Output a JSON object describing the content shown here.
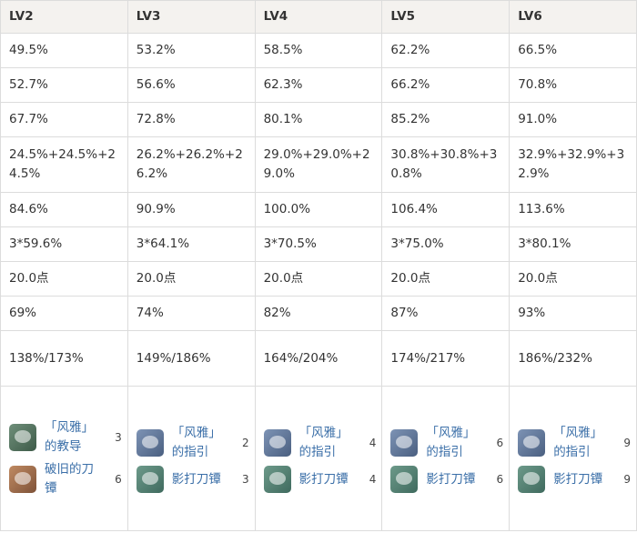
{
  "header": [
    "LV2",
    "LV3",
    "LV4",
    "LV5",
    "LV6"
  ],
  "rows": [
    [
      "49.5%",
      "53.2%",
      "58.5%",
      "62.2%",
      "66.5%"
    ],
    [
      "52.7%",
      "56.6%",
      "62.3%",
      "66.2%",
      "70.8%"
    ],
    [
      "67.7%",
      "72.8%",
      "80.1%",
      "85.2%",
      "91.0%"
    ],
    [
      "24.5%+24.5%+24.5%",
      "26.2%+26.2%+26.2%",
      "29.0%+29.0%+29.0%",
      "30.8%+30.8%+30.8%",
      "32.9%+32.9%+32.9%"
    ],
    [
      "84.6%",
      "90.9%",
      "100.0%",
      "106.4%",
      "113.6%"
    ],
    [
      "3*59.6%",
      "3*64.1%",
      "3*70.5%",
      "3*75.0%",
      "3*80.1%"
    ],
    [
      "20.0点",
      "20.0点",
      "20.0点",
      "20.0点",
      "20.0点"
    ],
    [
      "69%",
      "74%",
      "82%",
      "87%",
      "93%"
    ],
    [
      "138%/173%",
      "149%/186%",
      "164%/204%",
      "174%/217%",
      "186%/232%"
    ]
  ],
  "materials": [
    [
      {
        "name": "「风雅」的教导",
        "count": 3
      },
      {
        "name": "破旧的刀镡",
        "count": 6
      }
    ],
    [
      {
        "name": "「风雅」的指引",
        "count": 2
      },
      {
        "name": "影打刀镡",
        "count": 3
      }
    ],
    [
      {
        "name": "「风雅」的指引",
        "count": 4
      },
      {
        "name": "影打刀镡",
        "count": 4
      }
    ],
    [
      {
        "name": "「风雅」的指引",
        "count": 6
      },
      {
        "name": "影打刀镡",
        "count": 6
      }
    ],
    [
      {
        "name": "「风雅」的指引",
        "count": 9
      },
      {
        "name": "影打刀镡",
        "count": 9
      }
    ]
  ]
}
